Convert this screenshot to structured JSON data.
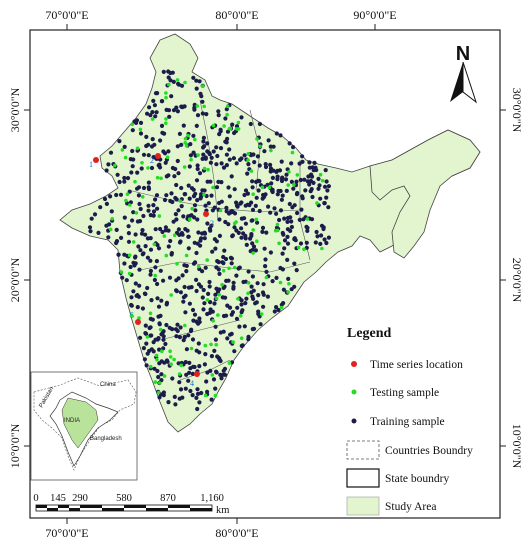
{
  "map": {
    "lon_labels_top": [
      "70°0'0\"E",
      "80°0'0\"E",
      "90°0'0\"E"
    ],
    "lon_labels_bottom": [
      "70°0'0\"E",
      "80°0'0\"E"
    ],
    "lat_labels_left": [
      "30°0'0\"N",
      "20°0'0\"N",
      "10°0'0\"N"
    ],
    "lat_labels_right": [
      "30°0'0\"N",
      "20°0'0\"N",
      "10°0'0\"N"
    ],
    "north_arrow_letter": "N",
    "colors": {
      "study_area_fill": "#e2f5cf",
      "training": "#1c1c4a",
      "testing": "#22dd22",
      "time_series": "#e32020",
      "state_line": "#555555"
    },
    "time_series_markers": [
      "1",
      "2",
      "3",
      "4",
      "5"
    ]
  },
  "legend": {
    "title": "Legend",
    "items": [
      {
        "label": "Time series location",
        "symbol": "red-dot"
      },
      {
        "label": "Testing sample",
        "symbol": "green-dot"
      },
      {
        "label": "Training sample",
        "symbol": "navy-dot"
      },
      {
        "label": "Countries Boundry",
        "symbol": "dashed-box"
      },
      {
        "label": "State boundry",
        "symbol": "solid-box"
      },
      {
        "label": "Study Area",
        "symbol": "green-box"
      }
    ]
  },
  "inset": {
    "labels": [
      "China",
      "Pakistan",
      "INDIA",
      "Bangladesh"
    ]
  },
  "scale_bar": {
    "ticks": [
      "0",
      "145",
      "290",
      "580",
      "870",
      "1,160"
    ],
    "unit": "km"
  }
}
